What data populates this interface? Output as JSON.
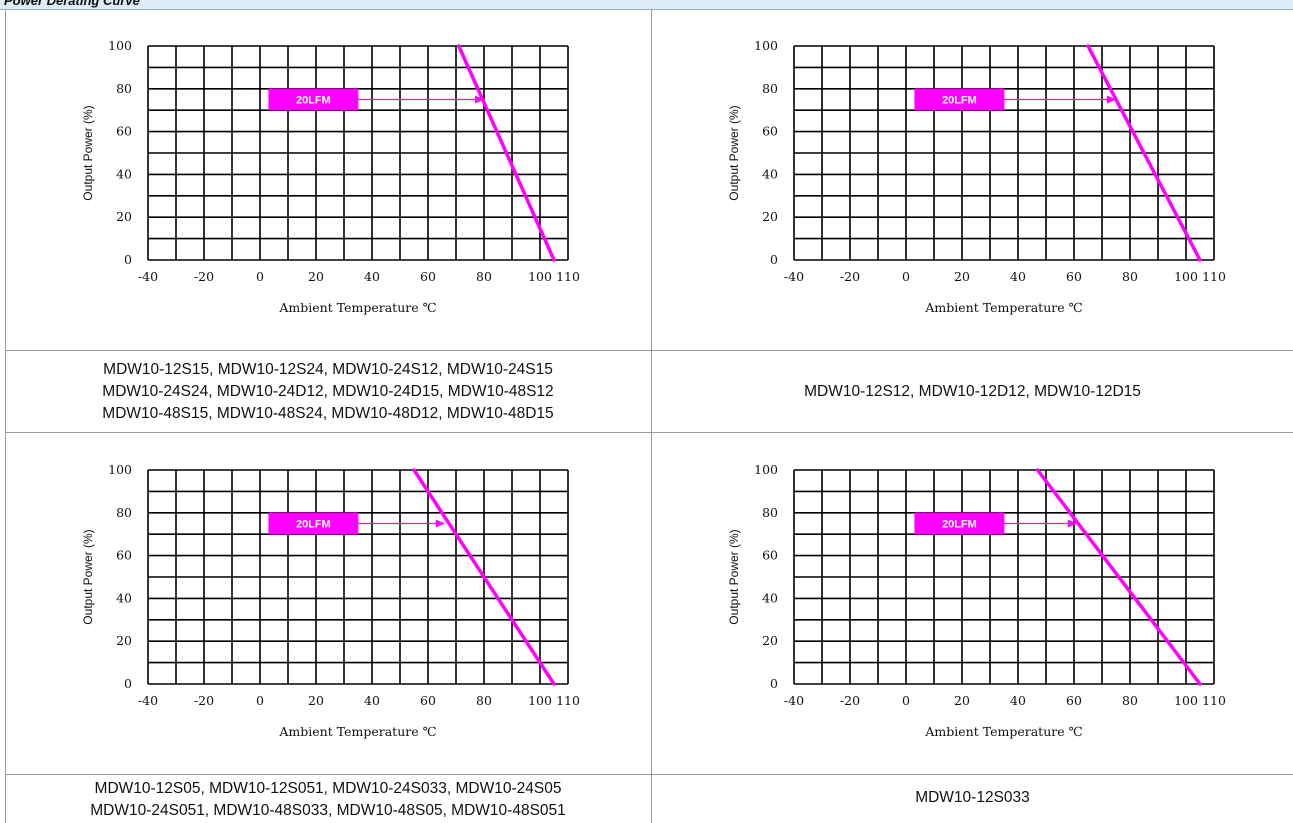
{
  "header": {
    "title": "Power Derating Curve"
  },
  "chart_data": [
    {
      "type": "line",
      "title": "",
      "xlabel": "Ambient Temperature ℃",
      "ylabel": "Output Power (%)",
      "xlim": [
        -40,
        110
      ],
      "ylim": [
        0,
        100
      ],
      "x_ticks": [
        "-40",
        "-20",
        "0",
        "20",
        "40",
        "60",
        "80",
        "100",
        "110"
      ],
      "y_ticks": [
        "0",
        "20",
        "40",
        "60",
        "80",
        "100"
      ],
      "grid": true,
      "series": [
        {
          "x": [
            71,
            105
          ],
          "y": [
            100,
            0
          ],
          "color": "#ff00ff"
        }
      ],
      "annotation": {
        "label": "20LFM",
        "arrow_to": [
          80,
          75
        ]
      },
      "caption": [
        "MDW10-12S15, MDW10-12S24, MDW10-24S12, MDW10-24S15",
        "MDW10-24S24, MDW10-24D12, MDW10-24D15, MDW10-48S12",
        "MDW10-48S15, MDW10-48S24, MDW10-48D12, MDW10-48D15"
      ]
    },
    {
      "type": "line",
      "title": "",
      "xlabel": "Ambient Temperature ℃",
      "ylabel": "Output Power (%)",
      "xlim": [
        -40,
        110
      ],
      "ylim": [
        0,
        100
      ],
      "x_ticks": [
        "-40",
        "-20",
        "0",
        "20",
        "40",
        "60",
        "80",
        "100",
        "110"
      ],
      "y_ticks": [
        "0",
        "20",
        "40",
        "60",
        "80",
        "100"
      ],
      "grid": true,
      "series": [
        {
          "x": [
            65,
            105
          ],
          "y": [
            100,
            0
          ],
          "color": "#ff00ff"
        }
      ],
      "annotation": {
        "label": "20LFM",
        "arrow_to": [
          75,
          75
        ]
      },
      "caption": [
        "MDW10-12S12, MDW10-12D12, MDW10-12D15"
      ]
    },
    {
      "type": "line",
      "title": "",
      "xlabel": "Ambient Temperature ℃",
      "ylabel": "Output Power (%)",
      "xlim": [
        -40,
        110
      ],
      "ylim": [
        0,
        100
      ],
      "x_ticks": [
        "-40",
        "-20",
        "0",
        "20",
        "40",
        "60",
        "80",
        "100",
        "110"
      ],
      "y_ticks": [
        "0",
        "20",
        "40",
        "60",
        "80",
        "100"
      ],
      "grid": true,
      "series": [
        {
          "x": [
            55,
            105
          ],
          "y": [
            100,
            0
          ],
          "color": "#ff00ff"
        }
      ],
      "annotation": {
        "label": "20LFM",
        "arrow_to": [
          66,
          75
        ]
      },
      "caption": [
        "MDW10-12S05, MDW10-12S051, MDW10-24S033, MDW10-24S05",
        "MDW10-24S051, MDW10-48S033, MDW10-48S05, MDW10-48S051"
      ]
    },
    {
      "type": "line",
      "title": "",
      "xlabel": "Ambient Temperature ℃",
      "ylabel": "Output Power (%)",
      "xlim": [
        -40,
        110
      ],
      "ylim": [
        0,
        100
      ],
      "x_ticks": [
        "-40",
        "-20",
        "0",
        "20",
        "40",
        "60",
        "80",
        "100",
        "110"
      ],
      "y_ticks": [
        "0",
        "20",
        "40",
        "60",
        "80",
        "100"
      ],
      "grid": true,
      "series": [
        {
          "x": [
            47,
            105
          ],
          "y": [
            100,
            0
          ],
          "color": "#ff00ff"
        }
      ],
      "annotation": {
        "label": "20LFM",
        "arrow_to": [
          61,
          75
        ]
      },
      "caption": [
        "MDW10-12S033"
      ]
    }
  ]
}
